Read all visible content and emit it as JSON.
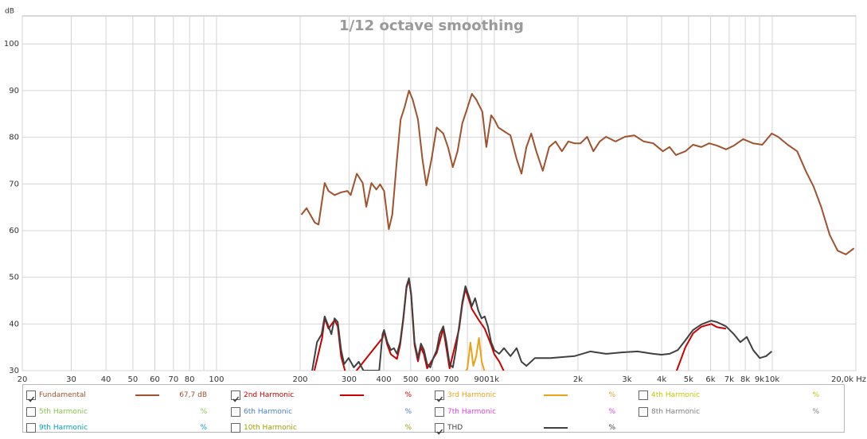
{
  "chart_data": {
    "type": "line",
    "title": "1/12 octave smoothing",
    "y_label": "dB",
    "log_x": true,
    "grid": true,
    "xlim": [
      20,
      20000
    ],
    "xticks": [
      20,
      30,
      40,
      50,
      60,
      70,
      80,
      100,
      200,
      300,
      400,
      500,
      600,
      700,
      900,
      {
        "value": 1000,
        "label": "1k"
      },
      {
        "value": 2000,
        "label": "2k"
      },
      {
        "value": 3000,
        "label": "3k"
      },
      {
        "value": 4000,
        "label": "4k"
      },
      {
        "value": 5000,
        "label": "5k"
      },
      {
        "value": 6000,
        "label": "6k"
      },
      {
        "value": 7000,
        "label": "7k"
      },
      {
        "value": 8000,
        "label": "8k"
      },
      {
        "value": 9000,
        "label": "9k"
      },
      {
        "value": 10000,
        "label": "10k"
      },
      {
        "value": 20000,
        "label": "20,0k Hz"
      }
    ],
    "xminor": [
      90,
      800
    ],
    "ylim": [
      30,
      106
    ],
    "yticks": [
      30,
      40,
      50,
      60,
      70,
      80,
      90,
      100
    ],
    "series": [
      {
        "name": "Fundamental",
        "color": "#a0522d",
        "checked": true,
        "readout": "67,7 dB",
        "x": [
          202,
          211,
          226,
          233,
          245,
          253,
          266,
          281,
          296,
          304,
          320,
          336,
          346,
          361,
          376,
          388,
          401,
          417,
          429,
          446,
          460,
          475,
          493,
          508,
          531,
          551,
          569,
          594,
          620,
          655,
          681,
          709,
          737,
          767,
          792,
          830,
          860,
          875,
          905,
          936,
          974,
          1000,
          1034,
          1083,
          1143,
          1203,
          1252,
          1304,
          1358,
          1415,
          1494,
          1575,
          1661,
          1750,
          1845,
          1943,
          2043,
          2157,
          2272,
          2394,
          2522,
          2730,
          2950,
          3190,
          3450,
          3730,
          4040,
          4270,
          4500,
          4870,
          5190,
          5560,
          5930,
          6330,
          6820,
          7280,
          7860,
          8540,
          9210,
          9960,
          10500,
          11370,
          12300,
          13200,
          14100,
          15000,
          16100,
          17200,
          18400,
          19700
        ],
        "values": [
          63.4,
          64.8,
          61.7,
          61.3,
          70.2,
          68.5,
          67.6,
          68.2,
          68.5,
          67.6,
          72.2,
          70.2,
          65.1,
          70.2,
          68.8,
          69.9,
          68.5,
          60.3,
          63.4,
          75.3,
          83.8,
          86.4,
          90.0,
          88.1,
          83.8,
          75.3,
          69.7,
          75.3,
          82.1,
          80.8,
          77.9,
          73.6,
          77.0,
          83.0,
          85.5,
          89.3,
          88.1,
          87.2,
          85.5,
          77.9,
          84.7,
          83.8,
          82.1,
          81.3,
          80.4,
          75.3,
          72.2,
          77.9,
          80.8,
          77.0,
          72.8,
          77.9,
          79.1,
          77.0,
          79.1,
          78.7,
          78.7,
          80.1,
          77.0,
          79.1,
          80.1,
          79.1,
          80.1,
          80.4,
          79.1,
          78.7,
          77.0,
          77.9,
          76.2,
          77.0,
          78.4,
          77.9,
          78.7,
          78.2,
          77.4,
          78.2,
          79.6,
          78.7,
          78.4,
          80.8,
          80.1,
          78.4,
          77.0,
          72.8,
          69.4,
          65.1,
          59.1,
          55.7,
          54.9,
          56.2
        ]
      },
      {
        "name": "2nd Harmonic",
        "color": "#cc0000",
        "checked": true,
        "readout": "%",
        "x": [
          225,
          240,
          245,
          253,
          266,
          273,
          281,
          290,
          300,
          396,
          401,
          412,
          424,
          446,
          458,
          470,
          483,
          493,
          502,
          516,
          531,
          544,
          558,
          573,
          620,
          655,
          690,
          747,
          767,
          787,
          830,
          875,
          923,
          974,
          1000,
          1040,
          1100,
          1300,
          2000,
          4500,
          4870,
          5190,
          5560,
          6030,
          6330,
          6820
        ],
        "values": [
          30,
          37,
          41.2,
          39,
          40.8,
          39.5,
          33,
          30,
          28,
          37,
          38.4,
          35.5,
          33.5,
          32.5,
          35.5,
          40.8,
          47.7,
          49.5,
          46,
          35.5,
          32,
          35,
          33.5,
          30.5,
          33.8,
          39,
          30.5,
          39,
          44.2,
          47.5,
          43.2,
          41,
          39,
          35.5,
          33.5,
          32,
          29,
          28,
          28,
          29.5,
          35,
          38,
          39.4,
          40,
          39.3,
          39
        ]
      },
      {
        "name": "3rd Harmonic",
        "color": "#e8a317",
        "checked": true,
        "readout": "%",
        "x": [
          760,
          800,
          820,
          840,
          860,
          880,
          900,
          920,
          950
        ],
        "values": [
          28,
          30.5,
          36,
          31,
          33,
          37,
          32,
          30,
          28
        ]
      },
      {
        "name": "4th Harmonic",
        "color": "#c8c800",
        "checked": false,
        "readout": "%"
      },
      {
        "name": "5th Harmonic",
        "color": "#8bc34a",
        "checked": false,
        "readout": "%"
      },
      {
        "name": "6th Harmonic",
        "color": "#4a7fd0",
        "checked": false,
        "readout": "%"
      },
      {
        "name": "7th Harmonic",
        "color": "#e040e0",
        "checked": false,
        "readout": "%"
      },
      {
        "name": "8th Harmonic",
        "color": "#808080",
        "checked": false,
        "readout": "%"
      },
      {
        "name": "9th Harmonic",
        "color": "#00a0c0",
        "checked": false,
        "readout": "%"
      },
      {
        "name": "10th Harmonic",
        "color": "#a0a000",
        "checked": false,
        "readout": "%"
      },
      {
        "name": "THD",
        "color": "#404040",
        "checked": true,
        "readout": "%",
        "x": [
          221,
          230,
          239,
          245,
          253,
          259,
          266,
          273,
          281,
          288,
          299,
          312,
          325,
          338,
          385,
          396,
          401,
          412,
          424,
          435,
          446,
          458,
          470,
          483,
          493,
          502,
          516,
          531,
          544,
          558,
          573,
          588,
          603,
          620,
          636,
          655,
          672,
          690,
          709,
          727,
          747,
          767,
          787,
          809,
          830,
          853,
          875,
          899,
          923,
          948,
          974,
          1000,
          1040,
          1083,
          1143,
          1203,
          1252,
          1304,
          1400,
          1590,
          1943,
          2214,
          2522,
          2870,
          3272,
          3730,
          3990,
          4270,
          4570,
          4870,
          5190,
          5560,
          6030,
          6330,
          6820,
          7280,
          7680,
          8100,
          8540,
          9020,
          9510,
          9960
        ],
        "values": [
          30,
          36.1,
          37.8,
          41.6,
          39.5,
          37.8,
          41.2,
          40.4,
          34.4,
          31.4,
          32.7,
          30.7,
          31.9,
          30,
          30,
          37.8,
          38.7,
          36.1,
          34.4,
          34.8,
          33.6,
          36.1,
          41.2,
          48.1,
          49.8,
          46.4,
          36.1,
          32.7,
          35.8,
          34.4,
          31.4,
          30.7,
          32.7,
          34.4,
          37.8,
          39.5,
          36.1,
          31.4,
          30.7,
          34.4,
          39.5,
          44.7,
          48.1,
          46.0,
          43.8,
          45.5,
          42.9,
          41.2,
          41.6,
          39.5,
          36.1,
          34.4,
          33.6,
          34.8,
          33.1,
          34.8,
          31.9,
          31.0,
          32.7,
          32.7,
          33.1,
          34.1,
          33.6,
          33.9,
          34.1,
          33.6,
          33.4,
          33.6,
          34.4,
          36.5,
          38.7,
          39.9,
          40.7,
          40.4,
          39.5,
          37.8,
          36.1,
          37.2,
          34.4,
          32.7,
          33.1,
          34.1
        ]
      }
    ]
  }
}
